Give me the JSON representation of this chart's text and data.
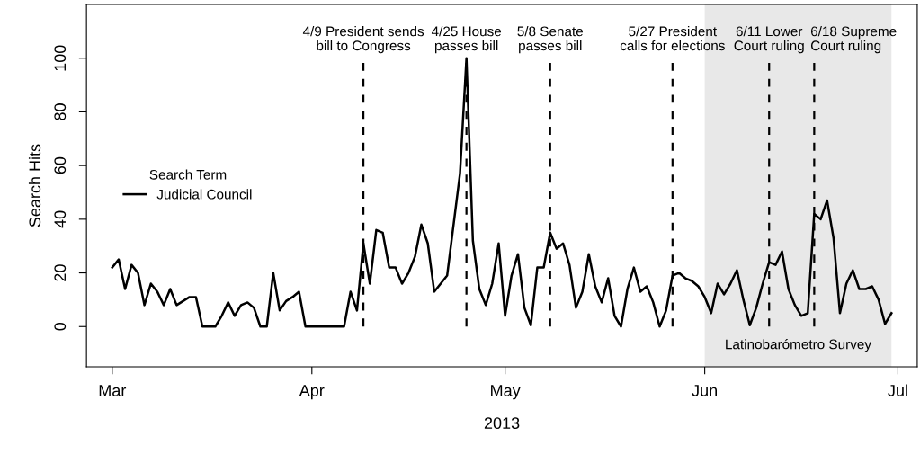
{
  "chart_data": {
    "type": "line",
    "xlabel": "2013",
    "ylabel": "Search Hits",
    "legend_title": "Search Term",
    "legend": "left",
    "grid": false,
    "xlim": [
      "2013-02-25",
      "2013-07-04"
    ],
    "ylim": [
      -15,
      120
    ],
    "xticks": [
      {
        "value": "2013-03-01",
        "label": "Mar"
      },
      {
        "value": "2013-04-01",
        "label": "Apr"
      },
      {
        "value": "2013-05-01",
        "label": "May"
      },
      {
        "value": "2013-06-01",
        "label": "Jun"
      },
      {
        "value": "2013-07-01",
        "label": "Jul"
      }
    ],
    "yticks": [
      0,
      20,
      40,
      60,
      80,
      100
    ],
    "x": [
      "2013-03-01",
      "2013-03-02",
      "2013-03-03",
      "2013-03-04",
      "2013-03-05",
      "2013-03-06",
      "2013-03-07",
      "2013-03-08",
      "2013-03-09",
      "2013-03-10",
      "2013-03-11",
      "2013-03-12",
      "2013-03-13",
      "2013-03-14",
      "2013-03-15",
      "2013-03-16",
      "2013-03-17",
      "2013-03-18",
      "2013-03-19",
      "2013-03-20",
      "2013-03-21",
      "2013-03-22",
      "2013-03-23",
      "2013-03-24",
      "2013-03-25",
      "2013-03-26",
      "2013-03-27",
      "2013-03-28",
      "2013-03-29",
      "2013-03-30",
      "2013-03-31",
      "2013-04-01",
      "2013-04-02",
      "2013-04-03",
      "2013-04-04",
      "2013-04-05",
      "2013-04-06",
      "2013-04-07",
      "2013-04-08",
      "2013-04-09",
      "2013-04-10",
      "2013-04-11",
      "2013-04-12",
      "2013-04-13",
      "2013-04-14",
      "2013-04-15",
      "2013-04-16",
      "2013-04-17",
      "2013-04-18",
      "2013-04-19",
      "2013-04-20",
      "2013-04-21",
      "2013-04-22",
      "2013-04-23",
      "2013-04-24",
      "2013-04-25",
      "2013-04-26",
      "2013-04-27",
      "2013-04-28",
      "2013-04-29",
      "2013-04-30",
      "2013-05-01",
      "2013-05-02",
      "2013-05-03",
      "2013-05-04",
      "2013-05-05",
      "2013-05-06",
      "2013-05-07",
      "2013-05-08",
      "2013-05-09",
      "2013-05-10",
      "2013-05-11",
      "2013-05-12",
      "2013-05-13",
      "2013-05-14",
      "2013-05-15",
      "2013-05-16",
      "2013-05-17",
      "2013-05-18",
      "2013-05-19",
      "2013-05-20",
      "2013-05-21",
      "2013-05-22",
      "2013-05-23",
      "2013-05-24",
      "2013-05-25",
      "2013-05-26",
      "2013-05-27",
      "2013-05-28",
      "2013-05-29",
      "2013-05-30",
      "2013-05-31",
      "2013-06-01",
      "2013-06-02",
      "2013-06-03",
      "2013-06-04",
      "2013-06-05",
      "2013-06-06",
      "2013-06-07",
      "2013-06-08",
      "2013-06-09",
      "2013-06-10",
      "2013-06-11",
      "2013-06-12",
      "2013-06-13",
      "2013-06-14",
      "2013-06-15",
      "2013-06-16",
      "2013-06-17",
      "2013-06-18",
      "2013-06-19",
      "2013-06-20",
      "2013-06-21",
      "2013-06-22",
      "2013-06-23",
      "2013-06-24",
      "2013-06-25",
      "2013-06-26",
      "2013-06-27",
      "2013-06-28",
      "2013-06-29",
      "2013-06-30"
    ],
    "series": [
      {
        "name": "Judicial Council",
        "color": "#000000",
        "values": [
          22,
          25,
          14,
          23,
          20,
          8,
          16,
          13,
          8,
          14,
          8,
          9.5,
          11,
          11,
          0,
          0,
          0,
          4,
          9,
          4,
          8,
          9,
          7,
          0,
          0,
          20,
          6,
          9.5,
          11,
          13,
          0,
          0,
          0,
          0,
          0,
          0,
          0,
          13,
          6,
          31,
          16,
          36,
          35,
          22,
          22,
          16,
          20,
          26,
          38,
          31,
          13,
          16,
          19,
          38,
          57,
          100,
          32,
          14,
          8,
          16,
          31,
          4,
          19,
          27,
          7,
          0.5,
          22,
          22,
          35,
          29,
          31,
          23,
          7,
          13,
          27,
          15,
          9,
          18,
          4,
          0,
          14,
          22,
          13,
          15,
          9,
          0,
          6,
          19,
          20,
          18,
          17,
          15,
          11,
          5,
          16,
          12,
          16,
          21,
          10,
          0.5,
          7,
          16,
          24,
          23,
          28,
          14,
          8,
          4,
          5,
          42,
          40,
          47,
          33,
          5,
          16,
          21,
          14,
          14,
          15,
          10,
          1,
          5
        ]
      }
    ],
    "ref_lines": [
      {
        "axis": "x",
        "value": "2013-04-09",
        "label": "4/9 President sends\nbill to Congress",
        "line_style": "dashed"
      },
      {
        "axis": "x",
        "value": "2013-04-25",
        "label": "4/25 House\npasses bill",
        "line_style": "dashed"
      },
      {
        "axis": "x",
        "value": "2013-05-08",
        "label": "5/8 Senate\npasses bill",
        "line_style": "dashed"
      },
      {
        "axis": "x",
        "value": "2013-05-27",
        "label": "5/27 President\ncalls for elections",
        "line_style": "dashed"
      },
      {
        "axis": "x",
        "value": "2013-06-11",
        "label": "6/11 Lower\nCourt ruling",
        "line_style": "dashed"
      },
      {
        "axis": "x",
        "value": "2013-06-18",
        "label": "6/18 Supreme\nCourt ruling",
        "line_style": "dashed"
      }
    ],
    "bands": [
      {
        "axis": "x",
        "from": "2013-06-01",
        "to": "2013-06-30",
        "label": "Latinobarómetro Survey",
        "color": "#e8e8e8"
      }
    ]
  }
}
